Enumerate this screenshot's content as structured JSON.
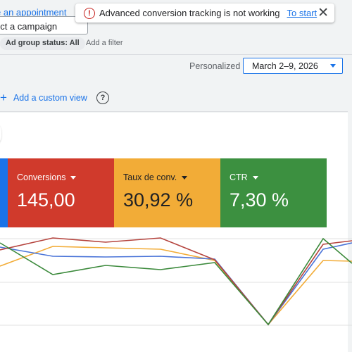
{
  "header": {
    "appointment_link": "e an appointment",
    "campaign_selector": "ect a campaign",
    "filter_chip": "Ad group status: All",
    "add_filter": "Add a filter"
  },
  "notification": {
    "message": "Advanced conversion tracking is not working",
    "action": "To start",
    "icon": "error-icon",
    "color": "#c5221f"
  },
  "date_range": {
    "label": "Personalized",
    "value": "March 2–9, 2026"
  },
  "views": {
    "add_label": "Add a custom view"
  },
  "metrics": [
    {
      "label": "Conversions",
      "value": "145,00",
      "color": "#d03a2c"
    },
    {
      "label": "Taux de conv.",
      "value": "30,92 %",
      "color": "#f2ac37"
    },
    {
      "label": "CTR",
      "value": "7,30 %",
      "color": "#3c9040"
    }
  ],
  "colors": {
    "accent": "#1a73e8",
    "blue_series": "#4a74d8",
    "red_series": "#b5443e",
    "yellow_series": "#f2ac37",
    "green_series": "#3c8a3c"
  }
}
